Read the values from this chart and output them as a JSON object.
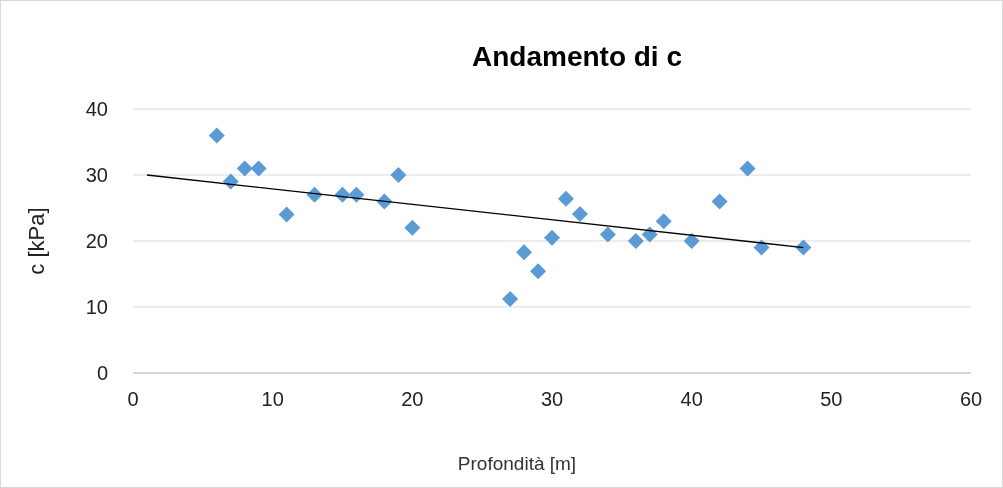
{
  "chart_data": {
    "type": "scatter",
    "title": "Andamento di c",
    "xlabel": "Profondità [m]",
    "ylabel": "c [kPa]",
    "xlim": [
      0,
      60
    ],
    "xticks": [
      0,
      10,
      20,
      30,
      40,
      50,
      60
    ],
    "ylim": [
      0,
      40
    ],
    "yticks": [
      0,
      10,
      20,
      30,
      40
    ],
    "grid": "y",
    "marker": "diamond",
    "series": [
      {
        "color": "#5b9bd5",
        "x": [
          6,
          7,
          8,
          9,
          11,
          13,
          15,
          16,
          18,
          19,
          20,
          27,
          28,
          29,
          30,
          31,
          32,
          34,
          36,
          37,
          38,
          40,
          42,
          44,
          45,
          48
        ],
        "values": [
          36,
          29,
          31,
          31,
          24,
          27,
          27,
          27,
          26,
          30,
          22,
          11.2,
          18.3,
          15.4,
          20.5,
          26.4,
          24.1,
          21,
          20,
          21,
          23,
          20,
          26,
          31,
          19,
          19
        ]
      },
      {
        "type": "line",
        "marker": "none",
        "color": "#000000",
        "x": [
          1,
          48
        ],
        "values": [
          30,
          19
        ]
      }
    ]
  }
}
